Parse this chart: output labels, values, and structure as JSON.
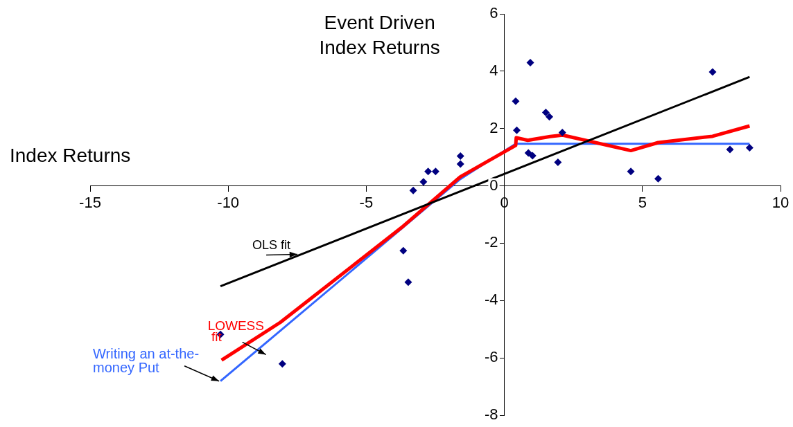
{
  "chart_data": {
    "type": "scatter",
    "ylabel": "Event Driven\nIndex Returns",
    "xlabel": "Index Returns",
    "xlim": [
      -15,
      10
    ],
    "xticks": [
      -15,
      -10,
      -5,
      0,
      5,
      10
    ],
    "ylim": [
      -8,
      6
    ],
    "yticks": [
      -8,
      -6,
      -4,
      -2,
      0,
      2,
      4,
      6
    ],
    "grid": false,
    "legend": false,
    "marker": "diamond",
    "series": [
      {
        "color": "#000080",
        "x": [
          -10.28,
          -8.04,
          -3.66,
          -3.48,
          -3.3,
          -2.93,
          -2.76,
          -2.49,
          -1.59,
          -1.59,
          0.41,
          0.45,
          0.94,
          0.87,
          1.02,
          1.5,
          1.63,
          1.94,
          2.1,
          4.58,
          5.57,
          7.54,
          8.17,
          8.88
        ],
        "values": [
          -5.18,
          -6.21,
          -2.26,
          -3.36,
          -0.16,
          0.14,
          0.5,
          0.5,
          0.76,
          1.04,
          2.95,
          1.94,
          4.3,
          1.15,
          1.05,
          2.56,
          2.41,
          0.82,
          1.86,
          0.5,
          0.25,
          3.97,
          1.27,
          1.33
        ]
      },
      {
        "type": "line",
        "name": "OLS fit",
        "color": "#000000",
        "marker": "none",
        "x": [
          -10.28,
          8.88
        ],
        "values": [
          -3.5,
          3.8
        ]
      },
      {
        "type": "line",
        "name": "LOWESS fit",
        "color": "#ff0000",
        "marker": "none",
        "x": [
          -10.24,
          -8.11,
          -3.73,
          -1.59,
          0.41,
          0.43,
          0.85,
          1.66,
          2.11,
          4.58,
          5.57,
          7.54,
          8.88
        ],
        "values": [
          -6.08,
          -4.76,
          -1.46,
          0.32,
          1.41,
          1.68,
          1.59,
          1.72,
          1.77,
          1.23,
          1.51,
          1.73,
          2.09
        ]
      },
      {
        "type": "line",
        "name": "Writing an at-the-money Put",
        "color": "#3366ff",
        "marker": "none",
        "x": [
          -10.28,
          -3.73,
          -1.59,
          0.41,
          8.88
        ],
        "values": [
          -6.81,
          -1.5,
          0.24,
          1.47,
          1.47
        ]
      }
    ]
  }
}
